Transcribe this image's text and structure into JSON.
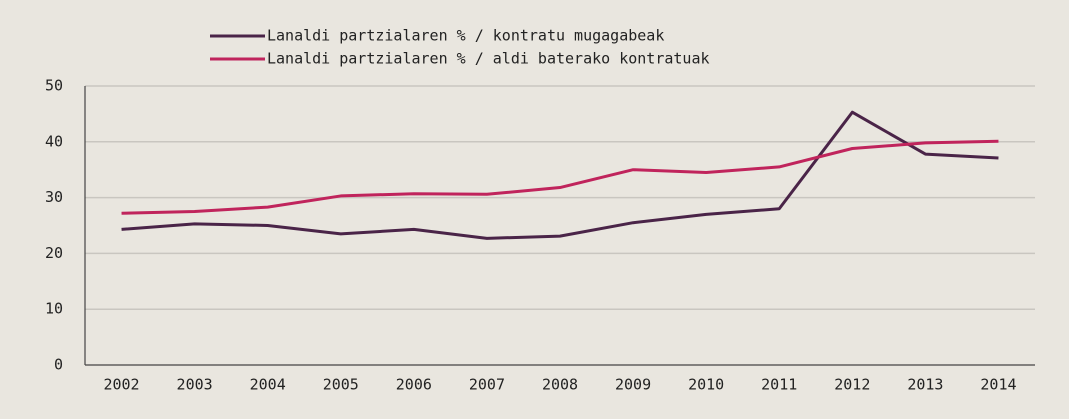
{
  "chart_data": {
    "type": "line",
    "categories": [
      "2002",
      "2003",
      "2004",
      "2005",
      "2006",
      "2007",
      "2008",
      "2009",
      "2010",
      "2011",
      "2012",
      "2013",
      "2014"
    ],
    "series": [
      {
        "name": "Lanaldi partzialaren % / kontratu mugagabeak",
        "color": "#4a2448",
        "values": [
          24.3,
          25.3,
          25.0,
          23.5,
          24.3,
          22.7,
          23.1,
          25.5,
          27.0,
          28.0,
          45.3,
          37.8,
          37.1
        ]
      },
      {
        "name": "Lanaldi partzialaren % / aldi baterako kontratuak",
        "color": "#c0245c",
        "values": [
          27.2,
          27.5,
          28.3,
          30.3,
          30.7,
          30.6,
          31.8,
          35.0,
          34.5,
          35.5,
          38.8,
          39.8,
          40.1
        ]
      }
    ],
    "ylim": [
      0,
      50
    ],
    "yticks": [
      0,
      10,
      20,
      30,
      40,
      50
    ],
    "grid": true,
    "legend": "top"
  }
}
